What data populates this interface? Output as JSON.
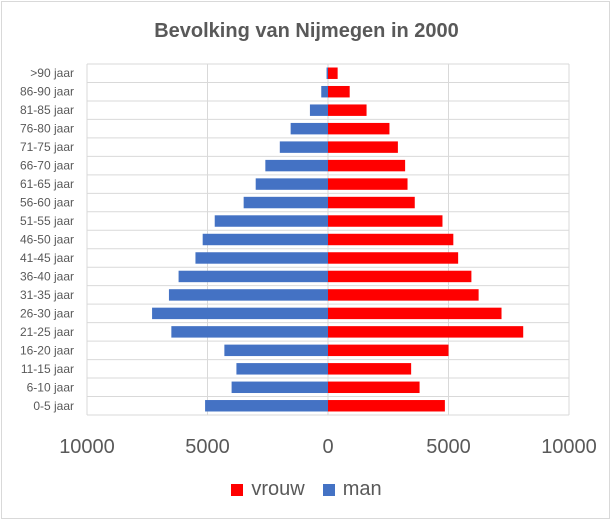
{
  "chart_data": {
    "type": "bar",
    "orientation": "horizontal",
    "title": "Bevolking van Nijmegen in 2000",
    "categories": [
      "0-5 jaar",
      "6-10 jaar",
      "11-15 jaar",
      "16-20 jaar",
      "21-25 jaar",
      "26-30 jaar",
      "31-35 jaar",
      "36-40 jaar",
      "41-45 jaar",
      "46-50 jaar",
      "51-55 jaar",
      "56-60 jaar",
      "61-65 jaar",
      "66-70 jaar",
      "71-75 jaar",
      "76-80 jaar",
      "81-85 jaar",
      "86-90 jaar",
      ">90 jaar"
    ],
    "series": [
      {
        "name": "man",
        "color": "#4472c4",
        "values": [
          5100,
          4000,
          3800,
          4300,
          6500,
          7300,
          6600,
          6200,
          5500,
          5200,
          4700,
          3500,
          3000,
          2600,
          2000,
          1550,
          750,
          280,
          60
        ]
      },
      {
        "name": "vrouw",
        "color": "#ff0000",
        "values": [
          4850,
          3800,
          3450,
          5000,
          8100,
          7200,
          6250,
          5950,
          5400,
          5200,
          4750,
          3600,
          3300,
          3200,
          2900,
          2550,
          1600,
          900,
          400
        ]
      }
    ],
    "xlim": [
      -10000,
      10000
    ],
    "xticks": [
      -10000,
      -5000,
      0,
      5000,
      10000
    ],
    "xtick_labels": [
      "10000",
      "5000",
      "0",
      "5000",
      "10000"
    ],
    "grid": true,
    "legend_position": "bottom",
    "legend_order": [
      "vrouw",
      "man"
    ]
  }
}
